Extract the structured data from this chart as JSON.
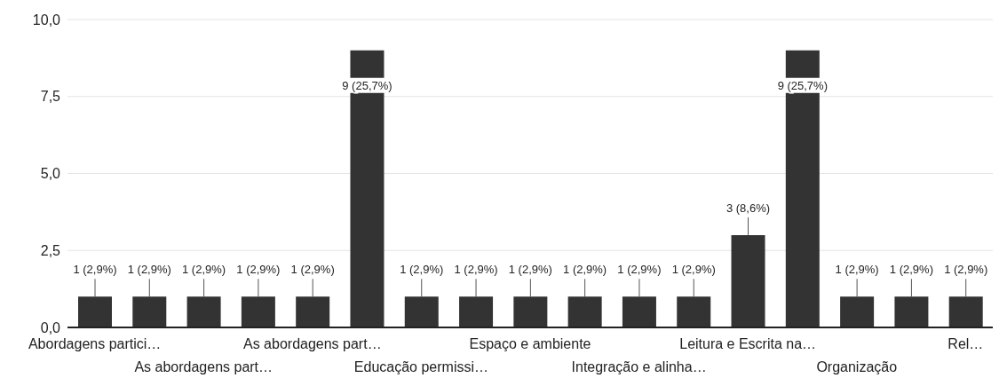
{
  "chart_data": {
    "type": "bar",
    "categories": [
      "Abordagens partici…",
      null,
      "As abordagens part…",
      null,
      "As abordagens part…",
      null,
      "Educação permissi…",
      null,
      "Espaço e ambiente",
      null,
      "Integração e alinha…",
      null,
      "Leitura e Escrita na…",
      null,
      "Organização",
      null,
      "Rel…"
    ],
    "values": [
      1,
      1,
      1,
      1,
      1,
      9,
      1,
      1,
      1,
      1,
      1,
      1,
      3,
      9,
      1,
      1,
      1
    ],
    "value_labels": [
      "1 (2,9%)",
      "1 (2,9%)",
      "1 (2,9%)",
      "1 (2,9%)",
      "1 (2,9%)",
      "9 (25,7%)",
      "1 (2,9%)",
      "1 (2,9%)",
      "1 (2,9%)",
      "1 (2,9%)",
      "1 (2,9%)",
      "1 (2,9%)",
      "3 (8,6%)",
      "9 (25,7%)",
      "1 (2,9%)",
      "1 (2,9%)",
      "1 (2,9%)"
    ],
    "color": "#333333",
    "ylim": [
      0,
      10
    ],
    "yticks": [
      {
        "value": 0,
        "label": "0,0"
      },
      {
        "value": 2.5,
        "label": "2,5"
      },
      {
        "value": 5,
        "label": "5,0"
      },
      {
        "value": 7.5,
        "label": "7,5"
      },
      {
        "value": 10,
        "label": "10,0"
      }
    ],
    "grid": "y"
  }
}
